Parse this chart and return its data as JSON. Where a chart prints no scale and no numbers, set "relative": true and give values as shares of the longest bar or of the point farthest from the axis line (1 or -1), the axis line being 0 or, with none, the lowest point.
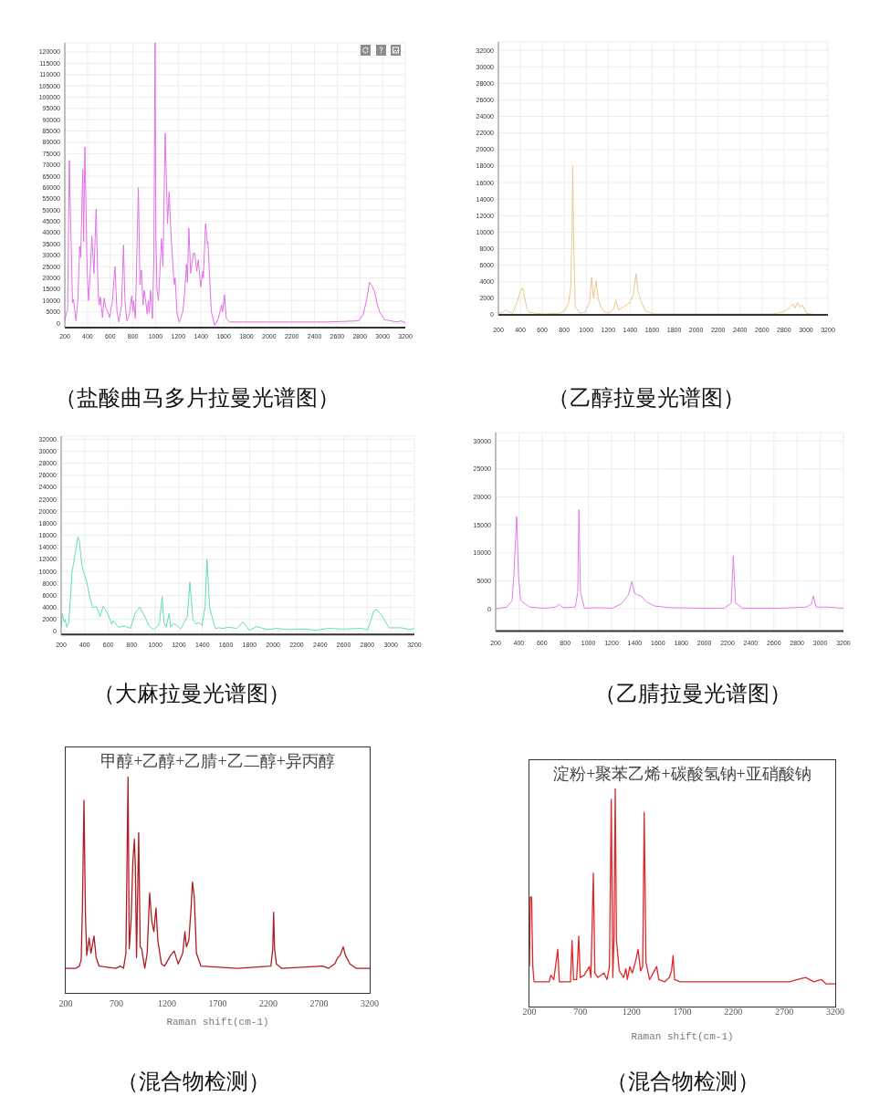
{
  "chart_data": [
    {
      "type": "line",
      "color": "#e36fe8",
      "grid": true,
      "xlim": [
        200,
        3200
      ],
      "ylim": [
        -2000,
        124000
      ],
      "xticks": [
        200,
        400,
        600,
        800,
        1000,
        1200,
        1400,
        1600,
        1800,
        2000,
        2200,
        2400,
        2600,
        2800,
        3000,
        3200
      ],
      "yticks": [
        0,
        5000,
        10000,
        15000,
        20000,
        25000,
        30000,
        35000,
        40000,
        45000,
        50000,
        55000,
        60000,
        65000,
        70000,
        75000,
        80000,
        85000,
        90000,
        95000,
        100000,
        105000,
        110000,
        115000,
        120000
      ],
      "x": [
        200,
        212,
        225,
        240,
        256,
        268,
        276,
        282,
        299,
        315,
        331,
        340,
        358,
        366,
        377,
        396,
        409,
        422,
        438,
        457,
        476,
        490,
        500,
        504,
        513,
        532,
        546,
        562,
        572,
        594,
        620,
        642,
        660,
        677,
        700,
        717,
        730,
        747,
        770,
        789,
        800,
        806,
        822,
        848,
        862,
        875,
        889,
        899,
        915,
        926,
        936,
        944,
        955,
        972,
        985,
        995,
        1003,
        1012,
        1025,
        1040,
        1052,
        1065,
        1084,
        1105,
        1119,
        1135,
        1159,
        1167,
        1172,
        1189,
        1210,
        1240,
        1255,
        1272,
        1280,
        1293,
        1309,
        1333,
        1344,
        1363,
        1376,
        1398,
        1416,
        1421,
        1440,
        1456,
        1461,
        1491,
        1521,
        1553,
        1580,
        1590,
        1607,
        1623,
        1652,
        2000,
        2523,
        2630,
        2790,
        2830,
        2858,
        2884,
        2906,
        2930,
        2950,
        2973,
        3018,
        3072,
        3125,
        3166,
        3200
      ],
      "values": [
        1000,
        4000,
        6000,
        72000,
        35000,
        9000,
        10500,
        8000,
        1000,
        10000,
        34000,
        29000,
        68000,
        36000,
        78000,
        25000,
        10000,
        20000,
        38500,
        22000,
        50500,
        20000,
        9000,
        8000,
        11500,
        2500,
        11000,
        6500,
        6000,
        2500,
        10000,
        25000,
        5000,
        500,
        8000,
        34500,
        10000,
        1000,
        4000,
        12000,
        5000,
        10000,
        2000,
        60000,
        17000,
        23500,
        8000,
        14500,
        9000,
        4000,
        10000,
        4500,
        14500,
        2000,
        30000,
        124000,
        37000,
        15000,
        10000,
        25000,
        37500,
        25000,
        84000,
        44000,
        58000,
        40000,
        20000,
        17000,
        20000,
        4000,
        500,
        5000,
        13000,
        26000,
        18000,
        42000,
        22000,
        31000,
        31000,
        23000,
        28000,
        16000,
        23000,
        20000,
        44000,
        35000,
        36000,
        5000,
        -1000,
        2000,
        8000,
        5000,
        12500,
        2000,
        500,
        500,
        500,
        700,
        1000,
        4000,
        10000,
        18000,
        16500,
        14000,
        9000,
        5000,
        1500,
        1000,
        500,
        1000,
        0
      ],
      "annotations": [
        "（盐酸曲马多片拉曼光谱图）"
      ]
    },
    {
      "type": "line",
      "color": "#f0c58e",
      "grid": true,
      "xlim": [
        200,
        3200
      ],
      "ylim": [
        0,
        33000
      ],
      "xticks": [
        200,
        400,
        600,
        800,
        1000,
        1200,
        1400,
        1600,
        1800,
        2000,
        2200,
        2400,
        2600,
        2800,
        3000,
        3200
      ],
      "yticks": [
        0,
        2000,
        4000,
        6000,
        8000,
        10000,
        12000,
        14000,
        16000,
        18000,
        20000,
        22000,
        24000,
        26000,
        28000,
        30000,
        32000
      ],
      "x": [
        200,
        240,
        265,
        290,
        330,
        372,
        400,
        422,
        440,
        460,
        480,
        600,
        760,
        805,
        840,
        860,
        870,
        877,
        884,
        899,
        940,
        988,
        1030,
        1049,
        1065,
        1090,
        1109,
        1130,
        1162,
        1204,
        1250,
        1268,
        1293,
        1342,
        1398,
        1430,
        1453,
        1470,
        1495,
        1537,
        1620,
        2000,
        2687,
        2784,
        2850,
        2881,
        2900,
        2923,
        2945,
        2965,
        3006,
        3089,
        3200
      ],
      "values": [
        200,
        300,
        600,
        400,
        200,
        1600,
        2800,
        3300,
        2000,
        700,
        300,
        100,
        200,
        500,
        1500,
        3500,
        10000,
        18000,
        10000,
        1000,
        200,
        300,
        1500,
        4500,
        2000,
        4100,
        2000,
        1000,
        400,
        200,
        700,
        1800,
        600,
        1000,
        1500,
        2500,
        5000,
        3000,
        1800,
        500,
        100,
        100,
        100,
        300,
        800,
        1300,
        800,
        1500,
        900,
        1200,
        200,
        0,
        0
      ],
      "annotations": [
        "（乙醇拉曼光谱图）"
      ]
    },
    {
      "type": "line",
      "color": "#5ee0ab",
      "grid": true,
      "xlim": [
        200,
        3200
      ],
      "ylim": [
        -500,
        32500
      ],
      "xticks": [
        200,
        400,
        600,
        800,
        1000,
        1200,
        1400,
        1600,
        1800,
        2000,
        2200,
        2400,
        2600,
        2800,
        3000,
        3200
      ],
      "yticks": [
        0,
        2000,
        4000,
        6000,
        8000,
        10000,
        12000,
        14000,
        16000,
        18000,
        20000,
        22000,
        24000,
        26000,
        28000,
        30000,
        32000
      ],
      "x": [
        200,
        210,
        226,
        234,
        247,
        265,
        293,
        311,
        342,
        355,
        376,
        390,
        414,
        440,
        466,
        500,
        531,
        557,
        595,
        629,
        642,
        686,
        737,
        789,
        828,
        867,
        898,
        944,
        983,
        1017,
        1035,
        1058,
        1073,
        1091,
        1117,
        1130,
        1151,
        1182,
        1215,
        1272,
        1293,
        1319,
        1345,
        1371,
        1396,
        1422,
        1438,
        1461,
        1508,
        1539,
        1577,
        1616,
        1694,
        1745,
        1797,
        1862,
        1952,
        2030,
        2133,
        2262,
        2365,
        2469,
        2598,
        2753,
        2805,
        2856,
        2882,
        2921,
        2985,
        3089,
        3166,
        3200
      ],
      "values": [
        800,
        3000,
        1500,
        2000,
        700,
        1500,
        10000,
        12000,
        15700,
        15000,
        11000,
        10000,
        8500,
        6000,
        4000,
        4100,
        2500,
        4200,
        3000,
        1200,
        1800,
        700,
        900,
        500,
        3000,
        4000,
        3000,
        1000,
        300,
        800,
        1500,
        5800,
        1500,
        700,
        3000,
        700,
        1300,
        1000,
        400,
        2500,
        8200,
        2000,
        1200,
        1500,
        1000,
        4000,
        12000,
        4000,
        500,
        600,
        500,
        700,
        500,
        1600,
        200,
        800,
        300,
        500,
        300,
        400,
        200,
        500,
        400,
        500,
        300,
        3500,
        3600,
        2700,
        600,
        600,
        300,
        500
      ],
      "annotations": [
        "（大麻拉曼光谱图）"
      ]
    },
    {
      "type": "line",
      "color": "#e47ae8",
      "grid": true,
      "xlim": [
        200,
        3200
      ],
      "ylim": [
        -4000,
        31500
      ],
      "xticks": [
        200,
        400,
        600,
        800,
        1000,
        1200,
        1400,
        1600,
        1800,
        2000,
        2200,
        2400,
        2600,
        2800,
        3000,
        3200
      ],
      "yticks": [
        0,
        5000,
        10000,
        15000,
        20000,
        25000,
        30000
      ],
      "x": [
        200,
        297,
        342,
        357,
        381,
        397,
        415,
        494,
        625,
        717,
        748,
        782,
        887,
        908,
        918,
        932,
        966,
        1071,
        1202,
        1280,
        1346,
        1375,
        1398,
        1424,
        1451,
        1503,
        1569,
        1700,
        1988,
        2172,
        2232,
        2250,
        2269,
        2292,
        2329,
        2644,
        2880,
        2922,
        2940,
        2964,
        3063,
        3200
      ],
      "values": [
        0,
        300,
        1500,
        6000,
        16500,
        6000,
        1500,
        300,
        100,
        300,
        800,
        200,
        300,
        3000,
        17700,
        3000,
        100,
        200,
        100,
        800,
        2500,
        4900,
        2800,
        2500,
        2300,
        1200,
        500,
        200,
        100,
        100,
        1000,
        9500,
        1000,
        700,
        100,
        100,
        300,
        800,
        2300,
        300,
        300,
        100
      ],
      "annotations": [
        "（乙腈拉曼光谱图）"
      ]
    },
    {
      "type": "line",
      "title": "甲醇+乙醇+乙腈+乙二醇+异丙醇",
      "xlabel": "Raman shift(cm-1)",
      "color": "#b01c24",
      "relative": true,
      "xlim": [
        200,
        3200
      ],
      "xticks": [
        200,
        700,
        1200,
        1700,
        2200,
        2700,
        3200
      ],
      "x": [
        200,
        300,
        335,
        353,
        365,
        380,
        395,
        407,
        431,
        449,
        479,
        500,
        530,
        695,
        740,
        770,
        794,
        815,
        827,
        845,
        863,
        878,
        887,
        899,
        920,
        935,
        950,
        980,
        1004,
        1028,
        1049,
        1070,
        1091,
        1109,
        1145,
        1175,
        1235,
        1271,
        1310,
        1355,
        1376,
        1391,
        1415,
        1436,
        1451,
        1469,
        1490,
        1535,
        1895,
        2225,
        2243,
        2252,
        2261,
        2279,
        2330,
        2735,
        2795,
        2855,
        2885,
        2909,
        2939,
        2960,
        3005,
        3065,
        3200
      ],
      "values": [
        0.11,
        0.11,
        0.12,
        0.15,
        0.4,
        0.89,
        0.35,
        0.17,
        0.25,
        0.18,
        0.26,
        0.16,
        0.12,
        0.11,
        0.12,
        0.11,
        0.18,
        1,
        0.2,
        0.33,
        0.61,
        0.71,
        0.58,
        0.16,
        0.74,
        0.21,
        0.2,
        0.11,
        0.18,
        0.46,
        0.33,
        0.28,
        0.39,
        0.24,
        0.13,
        0.12,
        0.17,
        0.19,
        0.13,
        0.18,
        0.28,
        0.21,
        0.24,
        0.38,
        0.51,
        0.44,
        0.18,
        0.12,
        0.11,
        0.12,
        0.2,
        0.37,
        0.2,
        0.13,
        0.11,
        0.12,
        0.11,
        0.13,
        0.16,
        0.17,
        0.21,
        0.17,
        0.13,
        0.11,
        0.11
      ],
      "annotations": [
        "（混合物检测）"
      ]
    },
    {
      "type": "line",
      "title": "淀粉+聚苯乙烯+碳酸氢钠+亚硝酸钠",
      "xlabel": "Raman shift(cm-1)",
      "color": "#e0282a",
      "relative": true,
      "xlim": [
        200,
        3200
      ],
      "xticks": [
        200,
        700,
        1200,
        1700,
        2200,
        2700,
        3200
      ],
      "x": [
        200,
        209,
        221,
        233,
        245,
        394,
        409,
        439,
        478,
        493,
        603,
        618,
        633,
        663,
        684,
        698,
        737,
        788,
        803,
        827,
        842,
        872,
        931,
        961,
        985,
        1003,
        1018,
        1030,
        1042,
        1054,
        1081,
        1125,
        1146,
        1161,
        1185,
        1209,
        1239,
        1266,
        1290,
        1311,
        1326,
        1343,
        1379,
        1448,
        1469,
        1528,
        1573,
        1594,
        1609,
        1624,
        1678,
        2752,
        2827,
        2910,
        2991,
        3066,
        3111,
        3200
      ],
      "values": [
        0.18,
        0.5,
        0.5,
        0.18,
        0.11,
        0.11,
        0.14,
        0.12,
        0.26,
        0.11,
        0.11,
        0.3,
        0.12,
        0.12,
        0.32,
        0.13,
        0.14,
        0.18,
        0.13,
        0.61,
        0.15,
        0.13,
        0.15,
        0.12,
        0.18,
        0.95,
        0.13,
        0.32,
        1,
        0.3,
        0.16,
        0.13,
        0.17,
        0.12,
        0.18,
        0.15,
        0.2,
        0.26,
        0.16,
        0.18,
        0.89,
        0.2,
        0.12,
        0.18,
        0.12,
        0.11,
        0.13,
        0.16,
        0.23,
        0.12,
        0.11,
        0.11,
        0.12,
        0.13,
        0.11,
        0.12,
        0.1,
        0.1
      ],
      "annotations": [
        "（混合物检测）"
      ]
    }
  ]
}
